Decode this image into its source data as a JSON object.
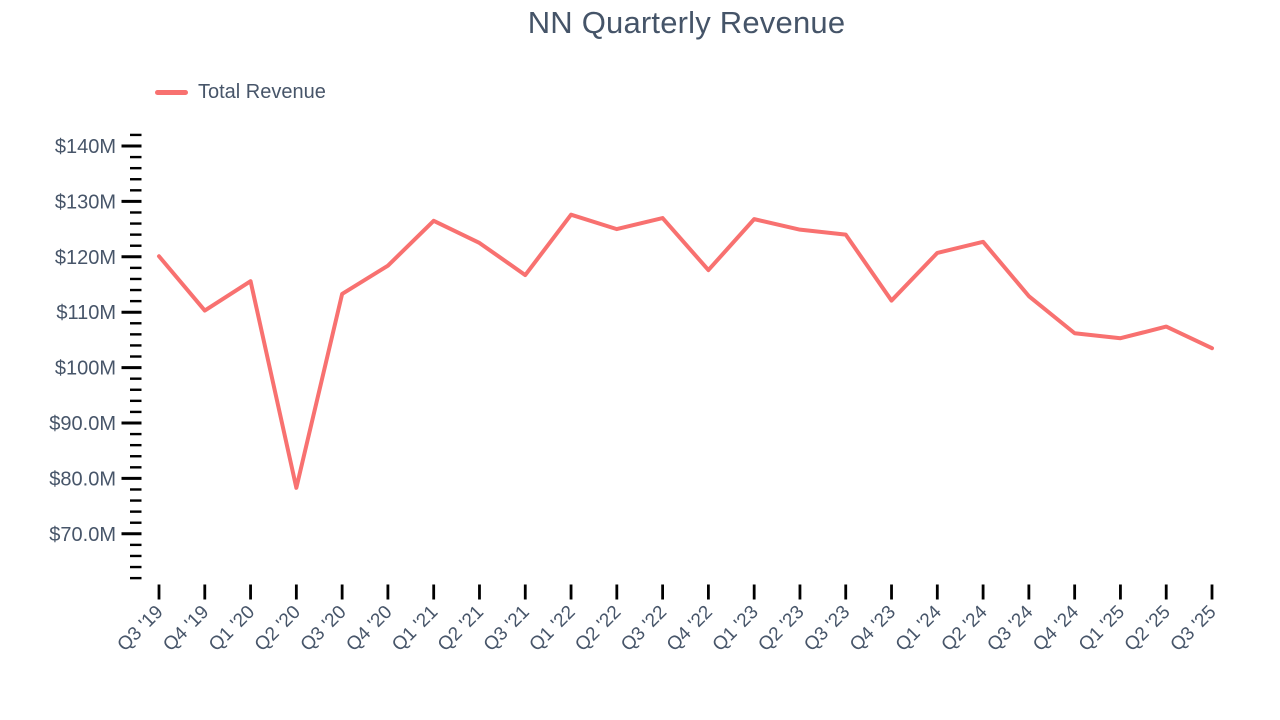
{
  "title": "NN Quarterly Revenue",
  "legend": {
    "label": "Total Revenue",
    "swatch_color": "#f87170"
  },
  "colors": {
    "line": "#f87170",
    "text": "#475569",
    "tick": "#000000",
    "background": "#ffffff"
  },
  "chart_data": {
    "type": "line",
    "title": "NN Quarterly Revenue",
    "xlabel": "",
    "ylabel": "",
    "grid": false,
    "legend_position": "top-left",
    "legend_entries": [
      "Total Revenue"
    ],
    "unit": "USD millions",
    "categories": [
      "Q3 '19",
      "Q4 '19",
      "Q1 '20",
      "Q2 '20",
      "Q3 '20",
      "Q4 '20",
      "Q1 '21",
      "Q2 '21",
      "Q3 '21",
      "Q1 '22",
      "Q2 '22",
      "Q3 '22",
      "Q4 '22",
      "Q1 '23",
      "Q2 '23",
      "Q3 '23",
      "Q4 '23",
      "Q1 '24",
      "Q2 '24",
      "Q3 '24",
      "Q4 '24",
      "Q1 '25",
      "Q2 '25",
      "Q3 '25"
    ],
    "series": [
      {
        "name": "Total Revenue",
        "color": "#f87170",
        "values": [
          120.1,
          110.3,
          115.6,
          78.3,
          113.3,
          118.4,
          126.5,
          122.5,
          116.7,
          127.6,
          125.0,
          127.0,
          117.6,
          126.8,
          124.9,
          124.0,
          112.1,
          120.7,
          122.7,
          112.9,
          106.2,
          105.3,
          107.4,
          103.5
        ]
      }
    ],
    "y_axis": {
      "major_tick_values": [
        140,
        130,
        120,
        110,
        100,
        90,
        80,
        70
      ],
      "major_tick_labels": [
        "$140M",
        "$130M",
        "$120M",
        "$110M",
        "$100M",
        "$90.0M",
        "$80.0M",
        "$70.0M"
      ],
      "minor_tick_step": 2,
      "axis_min": 62,
      "axis_max": 142
    },
    "ylim": [
      62,
      142
    ]
  }
}
